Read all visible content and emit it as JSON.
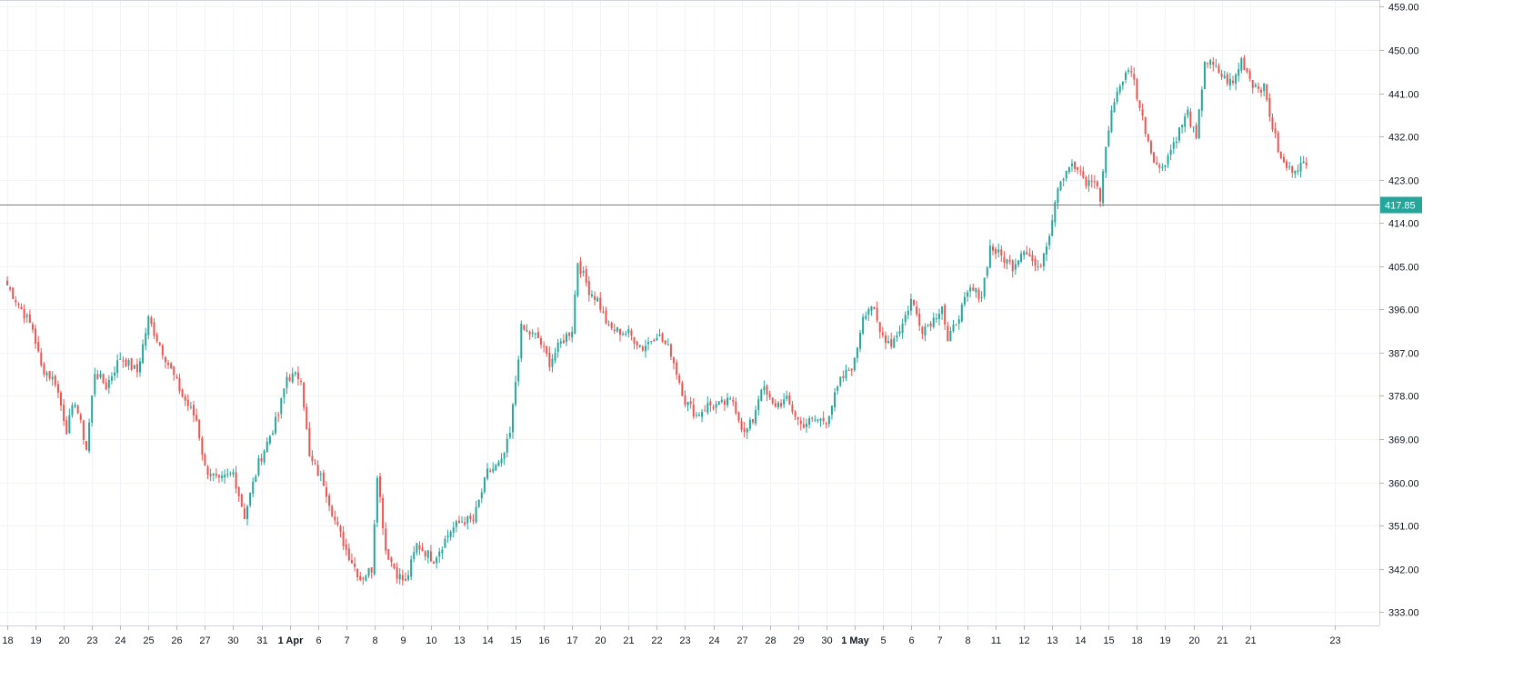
{
  "chart_data": {
    "type": "candlestick",
    "title": "",
    "xlabel": "",
    "ylabel": "",
    "ylim": [
      330,
      460
    ],
    "y_ticks": [
      "459.00",
      "450.00",
      "441.00",
      "432.00",
      "423.00",
      "414.00",
      "405.00",
      "396.00",
      "387.00",
      "378.00",
      "369.00",
      "360.00",
      "351.00",
      "342.00",
      "333.00"
    ],
    "x_ticks": [
      {
        "label": "18",
        "bar": 0
      },
      {
        "label": "19",
        "bar": 10
      },
      {
        "label": "20",
        "bar": 20
      },
      {
        "label": "23",
        "bar": 30
      },
      {
        "label": "24",
        "bar": 40
      },
      {
        "label": "25",
        "bar": 50
      },
      {
        "label": "26",
        "bar": 60
      },
      {
        "label": "27",
        "bar": 70
      },
      {
        "label": "30",
        "bar": 80
      },
      {
        "label": "31",
        "bar": 90
      },
      {
        "label": "1 Apr",
        "bar": 100
      },
      {
        "label": "6",
        "bar": 110
      },
      {
        "label": "7",
        "bar": 120
      },
      {
        "label": "8",
        "bar": 130
      },
      {
        "label": "9",
        "bar": 140
      },
      {
        "label": "10",
        "bar": 150
      },
      {
        "label": "13",
        "bar": 160
      },
      {
        "label": "14",
        "bar": 170
      },
      {
        "label": "15",
        "bar": 180
      },
      {
        "label": "16",
        "bar": 190
      },
      {
        "label": "17",
        "bar": 200
      },
      {
        "label": "20",
        "bar": 210
      },
      {
        "label": "21",
        "bar": 220
      },
      {
        "label": "22",
        "bar": 230
      },
      {
        "label": "23",
        "bar": 240
      },
      {
        "label": "24",
        "bar": 250
      },
      {
        "label": "27",
        "bar": 260
      },
      {
        "label": "28",
        "bar": 270
      },
      {
        "label": "29",
        "bar": 280
      },
      {
        "label": "30",
        "bar": 290
      },
      {
        "label": "1 May",
        "bar": 300
      },
      {
        "label": "5",
        "bar": 310
      },
      {
        "label": "6",
        "bar": 320
      },
      {
        "label": "7",
        "bar": 330
      },
      {
        "label": "8",
        "bar": 340
      },
      {
        "label": "11",
        "bar": 350
      },
      {
        "label": "12",
        "bar": 360
      },
      {
        "label": "13",
        "bar": 370
      },
      {
        "label": "14",
        "bar": 380
      },
      {
        "label": "15",
        "bar": 390
      },
      {
        "label": "18",
        "bar": 400
      },
      {
        "label": "19",
        "bar": 410
      },
      {
        "label": "20",
        "bar": 420
      },
      {
        "label": "21",
        "bar": 430
      },
      {
        "label": "21",
        "bar": 440
      },
      {
        "label": "23",
        "bar": 470
      }
    ],
    "bars_per_day": 10,
    "total_slots": 480,
    "last_price": "417.85",
    "grid": true,
    "colors": {
      "up": "#26a69a",
      "down": "#ef5350",
      "last_price": "#26a69a",
      "grid": "#f0f3fa",
      "axis_text": "#131722"
    },
    "anchors": [
      {
        "bar": 0,
        "close": 401
      },
      {
        "bar": 4,
        "close": 397
      },
      {
        "bar": 9,
        "close": 392
      },
      {
        "bar": 12,
        "close": 384
      },
      {
        "bar": 17,
        "close": 381
      },
      {
        "bar": 21,
        "close": 371
      },
      {
        "bar": 24,
        "close": 377
      },
      {
        "bar": 28,
        "close": 367
      },
      {
        "bar": 31,
        "close": 383
      },
      {
        "bar": 35,
        "close": 380
      },
      {
        "bar": 40,
        "close": 386
      },
      {
        "bar": 46,
        "close": 383
      },
      {
        "bar": 50,
        "close": 394
      },
      {
        "bar": 56,
        "close": 386
      },
      {
        "bar": 62,
        "close": 378
      },
      {
        "bar": 67,
        "close": 373
      },
      {
        "bar": 70,
        "close": 363
      },
      {
        "bar": 75,
        "close": 360
      },
      {
        "bar": 80,
        "close": 362
      },
      {
        "bar": 84,
        "close": 353
      },
      {
        "bar": 89,
        "close": 364
      },
      {
        "bar": 96,
        "close": 374
      },
      {
        "bar": 99,
        "close": 382
      },
      {
        "bar": 104,
        "close": 382
      },
      {
        "bar": 107,
        "close": 365
      },
      {
        "bar": 112,
        "close": 360
      },
      {
        "bar": 116,
        "close": 352
      },
      {
        "bar": 120,
        "close": 346
      },
      {
        "bar": 125,
        "close": 340
      },
      {
        "bar": 129,
        "close": 342
      },
      {
        "bar": 131,
        "close": 362
      },
      {
        "bar": 134,
        "close": 346
      },
      {
        "bar": 138,
        "close": 341
      },
      {
        "bar": 141,
        "close": 339
      },
      {
        "bar": 145,
        "close": 347
      },
      {
        "bar": 151,
        "close": 344
      },
      {
        "bar": 157,
        "close": 350
      },
      {
        "bar": 161,
        "close": 352
      },
      {
        "bar": 165,
        "close": 352
      },
      {
        "bar": 170,
        "close": 362
      },
      {
        "bar": 175,
        "close": 364
      },
      {
        "bar": 178,
        "close": 370
      },
      {
        "bar": 182,
        "close": 392
      },
      {
        "bar": 188,
        "close": 390
      },
      {
        "bar": 192,
        "close": 385
      },
      {
        "bar": 196,
        "close": 389
      },
      {
        "bar": 200,
        "close": 392
      },
      {
        "bar": 202,
        "close": 406
      },
      {
        "bar": 206,
        "close": 400
      },
      {
        "bar": 209,
        "close": 398
      },
      {
        "bar": 213,
        "close": 392
      },
      {
        "bar": 220,
        "close": 391
      },
      {
        "bar": 225,
        "close": 388
      },
      {
        "bar": 230,
        "close": 391
      },
      {
        "bar": 235,
        "close": 387
      },
      {
        "bar": 240,
        "close": 377
      },
      {
        "bar": 244,
        "close": 374
      },
      {
        "bar": 248,
        "close": 376
      },
      {
        "bar": 252,
        "close": 376
      },
      {
        "bar": 257,
        "close": 377
      },
      {
        "bar": 261,
        "close": 370
      },
      {
        "bar": 264,
        "close": 373
      },
      {
        "bar": 267,
        "close": 380
      },
      {
        "bar": 271,
        "close": 376
      },
      {
        "bar": 276,
        "close": 377
      },
      {
        "bar": 281,
        "close": 372
      },
      {
        "bar": 286,
        "close": 373
      },
      {
        "bar": 290,
        "close": 373
      },
      {
        "bar": 295,
        "close": 381
      },
      {
        "bar": 300,
        "close": 385
      },
      {
        "bar": 303,
        "close": 395
      },
      {
        "bar": 306,
        "close": 397
      },
      {
        "bar": 309,
        "close": 391
      },
      {
        "bar": 313,
        "close": 389
      },
      {
        "bar": 317,
        "close": 393
      },
      {
        "bar": 320,
        "close": 398
      },
      {
        "bar": 324,
        "close": 392
      },
      {
        "bar": 328,
        "close": 394
      },
      {
        "bar": 331,
        "close": 397
      },
      {
        "bar": 333,
        "close": 389
      },
      {
        "bar": 337,
        "close": 395
      },
      {
        "bar": 341,
        "close": 400
      },
      {
        "bar": 345,
        "close": 399
      },
      {
        "bar": 348,
        "close": 409
      },
      {
        "bar": 352,
        "close": 407
      },
      {
        "bar": 356,
        "close": 405
      },
      {
        "bar": 360,
        "close": 409
      },
      {
        "bar": 365,
        "close": 404
      },
      {
        "bar": 369,
        "close": 412
      },
      {
        "bar": 372,
        "close": 422
      },
      {
        "bar": 376,
        "close": 426
      },
      {
        "bar": 379,
        "close": 425
      },
      {
        "bar": 382,
        "close": 422
      },
      {
        "bar": 385,
        "close": 423
      },
      {
        "bar": 387,
        "close": 419
      },
      {
        "bar": 389,
        "close": 430
      },
      {
        "bar": 392,
        "close": 440
      },
      {
        "bar": 395,
        "close": 444
      },
      {
        "bar": 398,
        "close": 446
      },
      {
        "bar": 401,
        "close": 438
      },
      {
        "bar": 405,
        "close": 429
      },
      {
        "bar": 408,
        "close": 425
      },
      {
        "bar": 411,
        "close": 428
      },
      {
        "bar": 414,
        "close": 432
      },
      {
        "bar": 418,
        "close": 437
      },
      {
        "bar": 421,
        "close": 431
      },
      {
        "bar": 424,
        "close": 448
      },
      {
        "bar": 428,
        "close": 446
      },
      {
        "bar": 431,
        "close": 444
      },
      {
        "bar": 434,
        "close": 443
      },
      {
        "bar": 437,
        "close": 448
      },
      {
        "bar": 441,
        "close": 443
      },
      {
        "bar": 445,
        "close": 442
      },
      {
        "bar": 448,
        "close": 434
      },
      {
        "bar": 451,
        "close": 427
      },
      {
        "bar": 454,
        "close": 425
      },
      {
        "bar": 457,
        "close": 426
      },
      {
        "bar": 460,
        "close": 426
      }
    ]
  }
}
